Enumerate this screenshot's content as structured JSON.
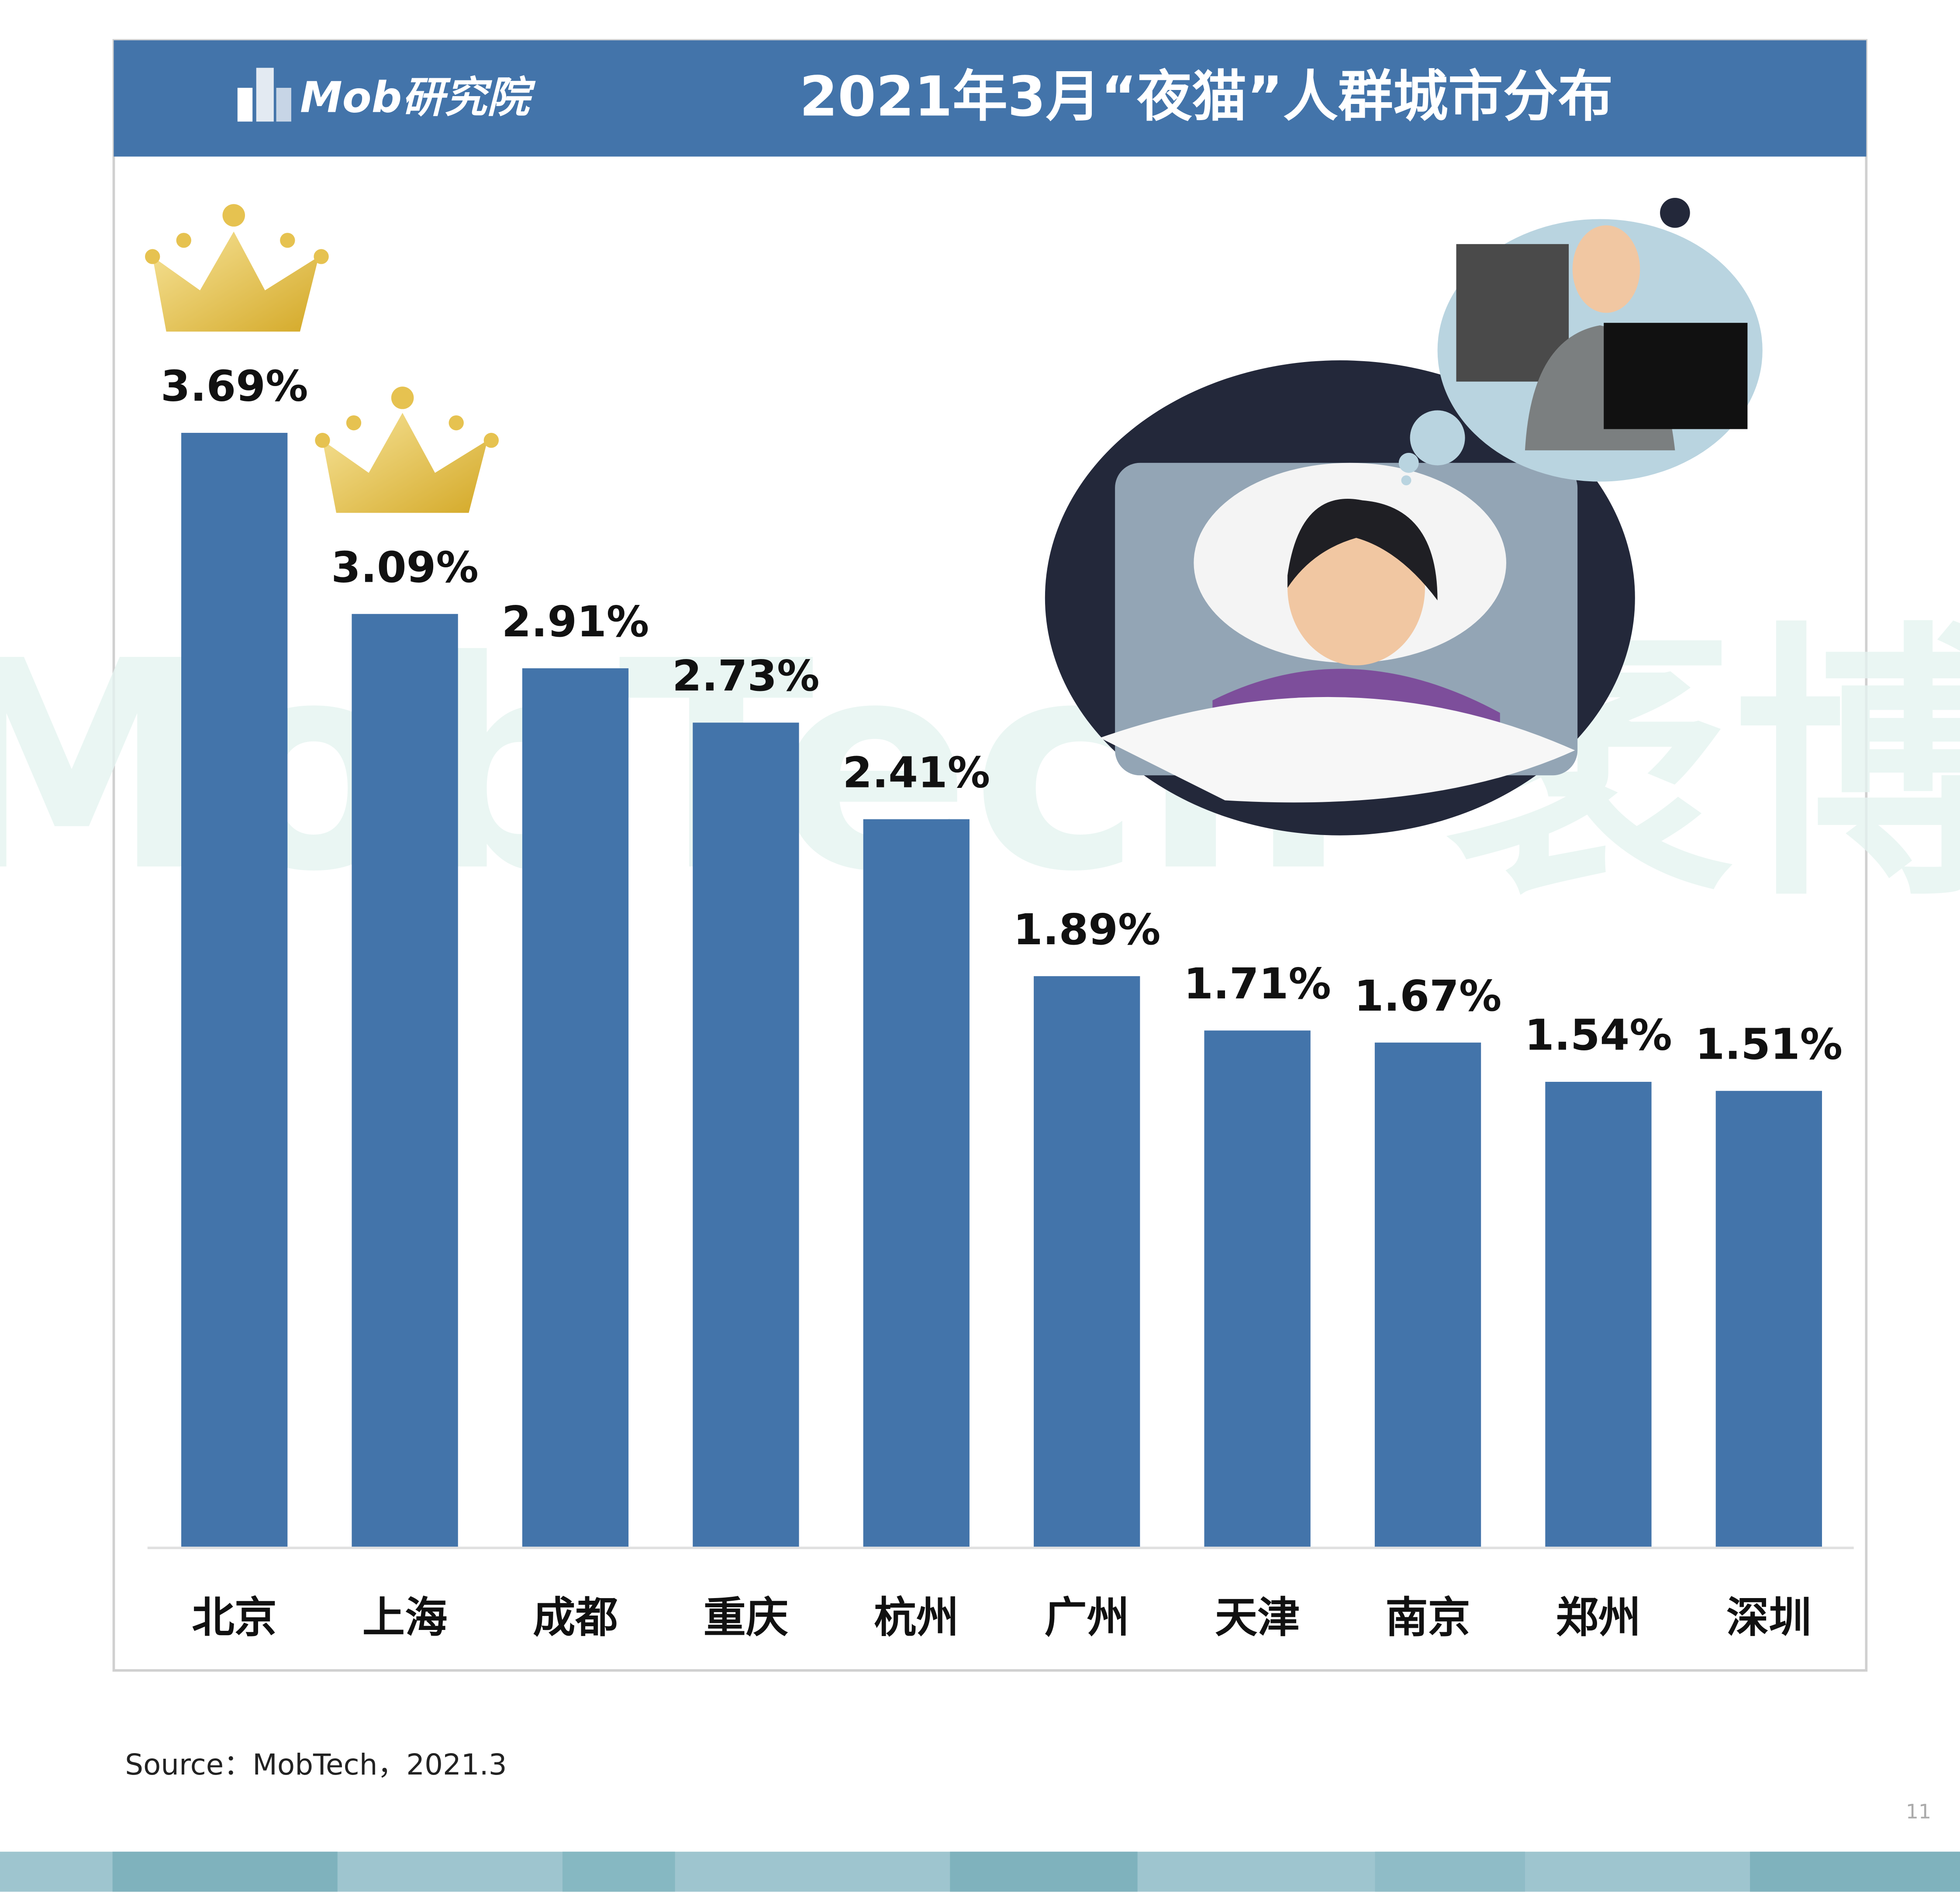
{
  "chart_data": {
    "type": "bar",
    "title": "2021年3月“夜猫”人群城市分布",
    "brand": "Mob研究院",
    "watermark": "MobTech 袤博",
    "source": "Source：MobTech，2021.3",
    "page_number": "11",
    "categories": [
      "北京",
      "上海",
      "成都",
      "重庆",
      "杭州",
      "广州",
      "天津",
      "南京",
      "郑州",
      "深圳"
    ],
    "values": [
      3.69,
      3.09,
      2.91,
      2.73,
      2.41,
      1.89,
      1.71,
      1.67,
      1.54,
      1.51
    ],
    "value_labels": [
      "3.69%",
      "3.09%",
      "2.91%",
      "2.73%",
      "2.41%",
      "1.89%",
      "1.71%",
      "1.67%",
      "1.54%",
      "1.51%"
    ],
    "color": "#4374aa"
  }
}
